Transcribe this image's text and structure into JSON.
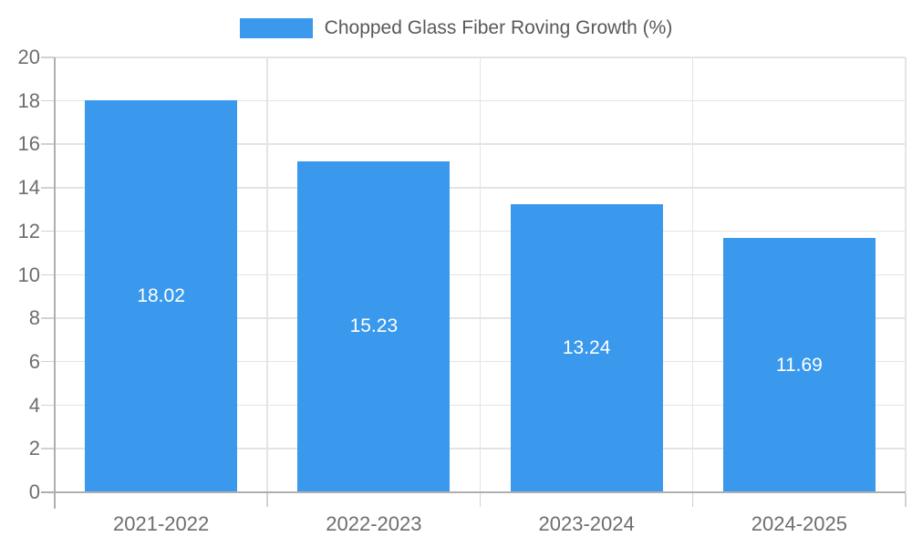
{
  "chart_data": {
    "type": "bar",
    "title": "Chopped Glass Fiber Roving Growth (%)",
    "legend": {
      "position": "top-center",
      "label": "Chopped Glass Fiber Roving Growth (%)"
    },
    "categories": [
      "2021-2022",
      "2022-2023",
      "2023-2024",
      "2024-2025"
    ],
    "series": [
      {
        "name": "Chopped Glass Fiber Roving Growth (%)",
        "values": [
          18.02,
          15.23,
          13.24,
          11.69
        ],
        "value_labels": [
          "18.02",
          "15.23",
          "13.24",
          "11.69"
        ]
      }
    ],
    "xlabel": "",
    "ylabel": "",
    "ylim": [
      0,
      20
    ],
    "ytick_step": 2,
    "ytick_labels": [
      "0",
      "2",
      "4",
      "6",
      "8",
      "10",
      "12",
      "14",
      "16",
      "18",
      "20"
    ],
    "grid": true,
    "colors": {
      "bar": "#3A99EC",
      "value_label_text": "#FFFFFF",
      "gridline": "#E4E4E4",
      "axis_line": "#AFAFAF",
      "tick_line": "#D2D2D2",
      "axis_text": "#6E6E6E",
      "legend_text": "#595959",
      "background": "#FFFFFF"
    }
  }
}
